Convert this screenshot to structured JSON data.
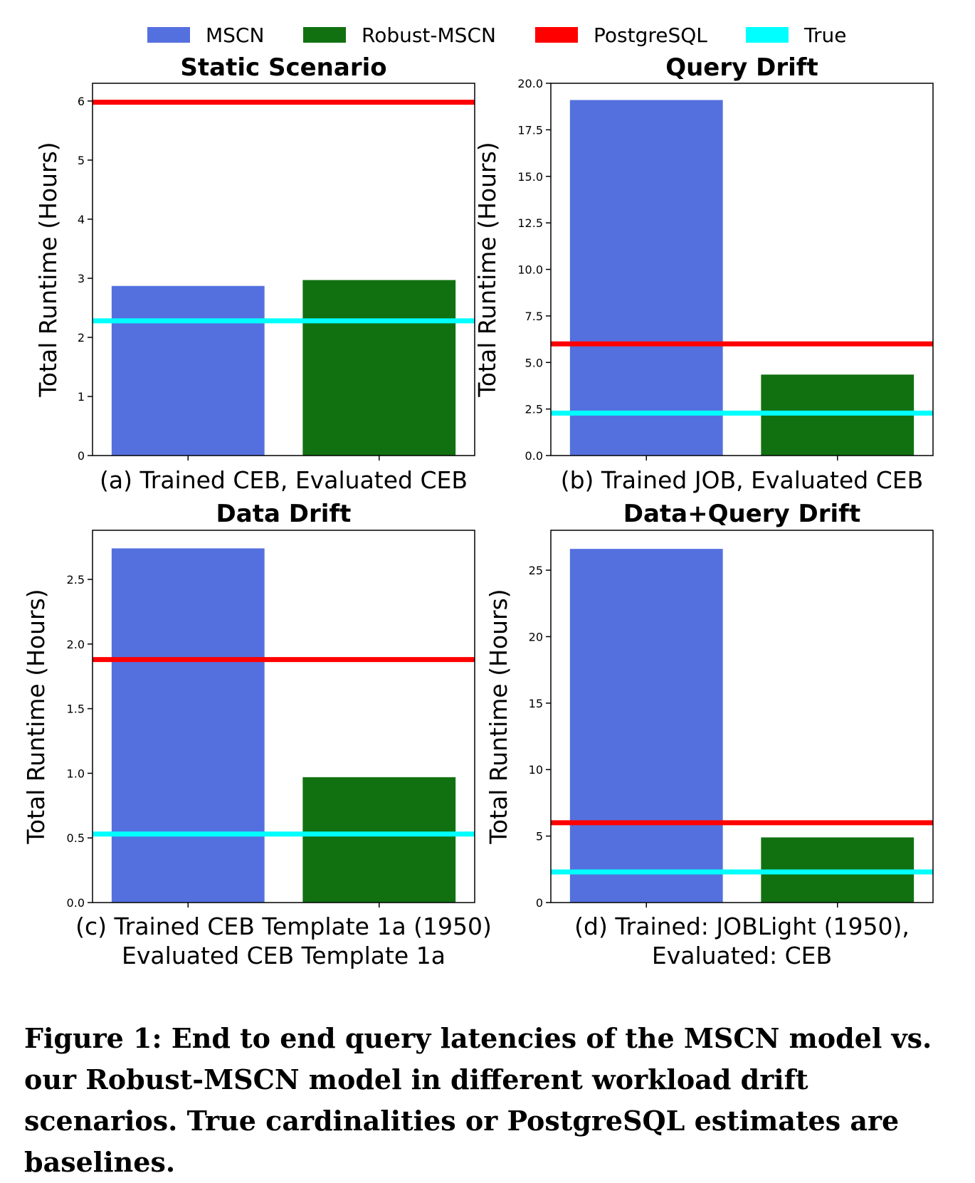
{
  "legend": [
    {
      "name": "MSCN",
      "color": "#5470df",
      "kind": "bar"
    },
    {
      "name": "Robust-MSCN",
      "color": "#117111",
      "kind": "bar"
    },
    {
      "name": "PostgreSQL",
      "color": "#ff0000",
      "kind": "line"
    },
    {
      "name": "True",
      "color": "#00ffff",
      "kind": "line"
    }
  ],
  "chart_data": [
    {
      "type": "bar",
      "title": "Static Scenario",
      "ylabel": "Total Runtime (Hours)",
      "caption": [
        "(a) Trained CEB, Evaluated CEB"
      ],
      "ylim": [
        0,
        6.3
      ],
      "yticks": [
        "0",
        "1",
        "2",
        "3",
        "4",
        "5",
        "6"
      ],
      "ytick_values": [
        0,
        1,
        2,
        3,
        4,
        5,
        6
      ],
      "categories": [
        "MSCN",
        "Robust-MSCN"
      ],
      "values": [
        2.87,
        2.97
      ],
      "baselines": {
        "PostgreSQL": 5.98,
        "True": 2.28
      }
    },
    {
      "type": "bar",
      "title": "Query Drift",
      "ylabel": "Total Runtime (Hours)",
      "caption": [
        "(b) Trained JOB, Evaluated CEB"
      ],
      "ylim": [
        0,
        20.0
      ],
      "yticks": [
        "0.0",
        "2.5",
        "5.0",
        "7.5",
        "10.0",
        "12.5",
        "15.0",
        "17.5",
        "20.0"
      ],
      "ytick_values": [
        0,
        2.5,
        5,
        7.5,
        10,
        12.5,
        15,
        17.5,
        20
      ],
      "categories": [
        "MSCN",
        "Robust-MSCN"
      ],
      "values": [
        19.1,
        4.35
      ],
      "baselines": {
        "PostgreSQL": 6.0,
        "True": 2.28
      }
    },
    {
      "type": "bar",
      "title": "Data Drift",
      "ylabel": "Total Runtime (Hours)",
      "caption": [
        "(c) Trained CEB Template 1a (1950)",
        "Evaluated CEB Template 1a"
      ],
      "ylim": [
        0,
        2.88
      ],
      "yticks": [
        "0.0",
        "0.5",
        "1.0",
        "1.5",
        "2.0",
        "2.5"
      ],
      "ytick_values": [
        0,
        0.5,
        1.0,
        1.5,
        2.0,
        2.5
      ],
      "categories": [
        "MSCN",
        "Robust-MSCN"
      ],
      "values": [
        2.74,
        0.97
      ],
      "baselines": {
        "PostgreSQL": 1.88,
        "True": 0.53
      }
    },
    {
      "type": "bar",
      "title": "Data+Query Drift",
      "ylabel": "Total Runtime (Hours)",
      "caption": [
        "(d) Trained: JOBLight (1950),",
        "Evaluated: CEB"
      ],
      "ylim": [
        0,
        28.0
      ],
      "yticks": [
        "0",
        "5",
        "10",
        "15",
        "20",
        "25"
      ],
      "ytick_values": [
        0,
        5,
        10,
        15,
        20,
        25
      ],
      "categories": [
        "MSCN",
        "Robust-MSCN"
      ],
      "values": [
        26.6,
        4.9
      ],
      "baselines": {
        "PostgreSQL": 6.0,
        "True": 2.3
      }
    }
  ],
  "figure_caption": "Figure 1:  End to end query latencies of the MSCN model vs. our Robust-MSCN model in different workload drift scenarios. True cardinalities or PostgreSQL estimates are baselines."
}
